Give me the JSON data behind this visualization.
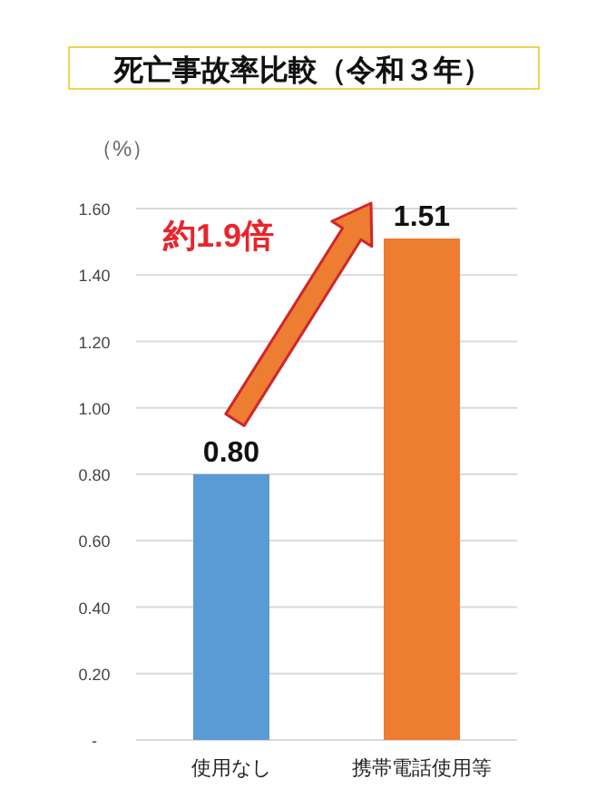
{
  "chart_data": {
    "type": "bar",
    "title": "死亡事故率比較（令和３年）",
    "ylabel": "（%）",
    "categories": [
      "使用なし",
      "携帯電話使用等"
    ],
    "values": [
      0.8,
      1.51
    ],
    "colors": [
      "#5b9bd5",
      "#ed7d31"
    ],
    "value_labels": [
      "0.80",
      "1.51"
    ],
    "ylim": [
      0,
      1.6
    ],
    "yticks": [
      {
        "value": 0,
        "label": "-"
      },
      {
        "value": 0.2,
        "label": "0.20"
      },
      {
        "value": 0.4,
        "label": "0.40"
      },
      {
        "value": 0.6,
        "label": "0.60"
      },
      {
        "value": 0.8,
        "label": "0.80"
      },
      {
        "value": 1.0,
        "label": "1.00"
      },
      {
        "value": 1.2,
        "label": "1.20"
      },
      {
        "value": 1.4,
        "label": "1.40"
      },
      {
        "value": 1.6,
        "label": "1.60"
      }
    ],
    "grid": "y",
    "annotations": [
      "約1.9倍"
    ]
  }
}
